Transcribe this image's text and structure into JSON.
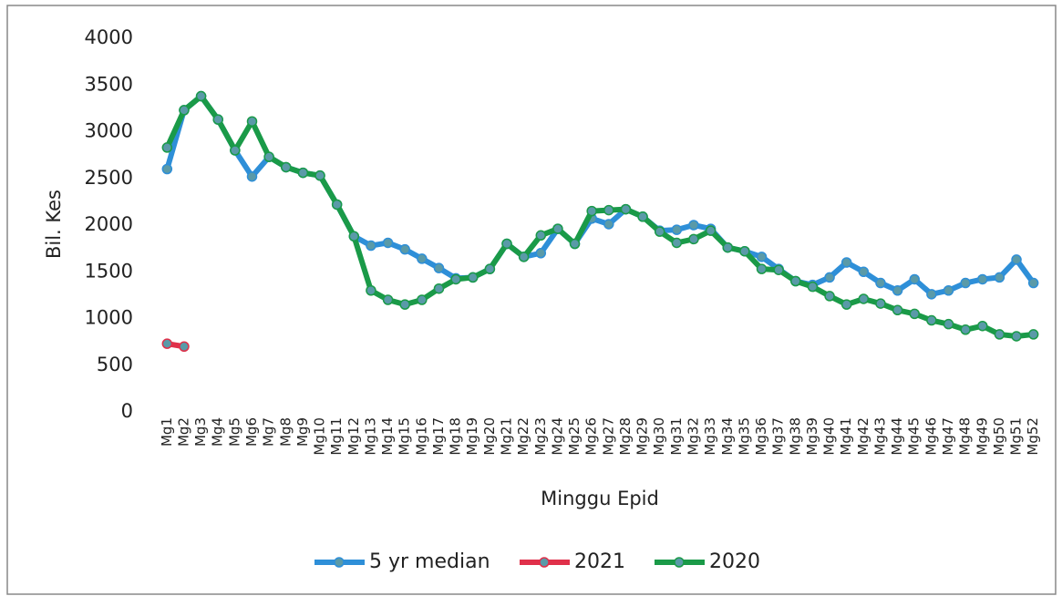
{
  "chart_data": {
    "type": "line",
    "x_label": "Minggu Epid",
    "y_label": "Bil. Kes",
    "categories": [
      "Mg1",
      "Mg2",
      "Mg3",
      "Mg4",
      "Mg5",
      "Mg6",
      "Mg7",
      "Mg8",
      "Mg9",
      "Mg10",
      "Mg11",
      "Mg12",
      "Mg13",
      "Mg14",
      "Mg15",
      "Mg16",
      "Mg17",
      "Mg18",
      "Mg19",
      "Mg20",
      "Mg21",
      "Mg22",
      "Mg23",
      "Mg24",
      "Mg25",
      "Mg26",
      "Mg27",
      "Mg28",
      "Mg29",
      "Mg30",
      "Mg31",
      "Mg32",
      "Mg33",
      "Mg34",
      "Mg35",
      "Mg36",
      "Mg37",
      "Mg38",
      "Mg39",
      "Mg40",
      "Mg41",
      "Mg42",
      "Mg43",
      "Mg44",
      "Mg45",
      "Mg46",
      "Mg47",
      "Mg48",
      "Mg49",
      "Mg50",
      "Mg51",
      "Mg52"
    ],
    "series": [
      {
        "name": "5 yr median",
        "color": "#2e8fd8",
        "values": [
          2600,
          3230,
          3380,
          3130,
          2800,
          2520,
          2730,
          2620,
          2560,
          2530,
          2220,
          1880,
          1780,
          1810,
          1740,
          1640,
          1540,
          1430,
          1440,
          1530,
          1800,
          1660,
          1700,
          1960,
          1800,
          2070,
          2010,
          2170,
          2090,
          1940,
          1950,
          2000,
          1960,
          1760,
          1720,
          1660,
          1530,
          1400,
          1360,
          1440,
          1600,
          1500,
          1380,
          1300,
          1420,
          1260,
          1300,
          1380,
          1420,
          1440,
          1630,
          1380
        ]
      },
      {
        "name": "2021",
        "color": "#e0304a",
        "values": [
          730,
          700,
          null,
          null,
          null,
          null,
          null,
          null,
          null,
          null,
          null,
          null,
          null,
          null,
          null,
          null,
          null,
          null,
          null,
          null,
          null,
          null,
          null,
          null,
          null,
          null,
          null,
          null,
          null,
          null,
          null,
          null,
          null,
          null,
          null,
          null,
          null,
          null,
          null,
          null,
          null,
          null,
          null,
          null,
          null,
          null,
          null,
          null,
          null,
          null,
          null,
          null
        ]
      },
      {
        "name": "2020",
        "color": "#1a9a48",
        "values": [
          2830,
          3230,
          3380,
          3130,
          2800,
          3110,
          2730,
          2620,
          2560,
          2530,
          2220,
          1880,
          1300,
          1200,
          1150,
          1200,
          1320,
          1420,
          1440,
          1530,
          1800,
          1660,
          1890,
          1960,
          1800,
          2150,
          2160,
          2170,
          2090,
          1930,
          1810,
          1850,
          1940,
          1760,
          1720,
          1530,
          1520,
          1400,
          1340,
          1240,
          1150,
          1210,
          1160,
          1090,
          1050,
          980,
          940,
          880,
          920,
          830,
          810,
          830
        ]
      }
    ],
    "ylim": [
      0,
      4000
    ],
    "yticks": [
      0,
      500,
      1000,
      1500,
      2000,
      2500,
      3000,
      3500,
      4000
    ],
    "grid": false,
    "marker_color": "#5a9aa8"
  }
}
